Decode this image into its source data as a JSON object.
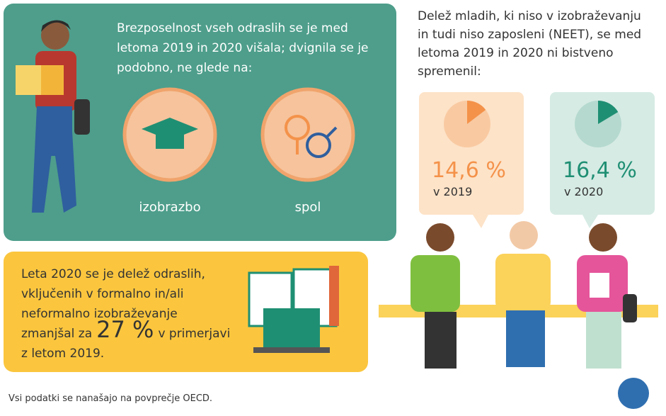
{
  "panel_unemployment": {
    "lines": [
      "Brezposelnost vseh odraslih se je med",
      "letoma 2019 in 2020 višala; dvignila se je",
      "podobno, ne glede na:"
    ],
    "items": [
      "izobrazbo",
      "spol"
    ]
  },
  "panel_education": {
    "lines": [
      "Leta 2020 se je delež odraslih,",
      "vključenih  v formalno in/ali",
      "neformalno izobraževanje"
    ],
    "before": "zmanjšal za",
    "highlight": "27 %",
    "after": "v primerjavi",
    "last": "z letom 2019."
  },
  "neet": {
    "lines": [
      "Delež mladih, ki niso v izobraževanju",
      "in tudi niso zaposleni (NEET), se med",
      "letoma 2019 in 2020 ni bistveno",
      "spremenil:"
    ],
    "cards": [
      {
        "value": 14.6,
        "label": "14,6 %",
        "year": "v 2019",
        "color": "#f4924a"
      },
      {
        "value": 16.4,
        "label": "16,4 %",
        "year": "v 2020",
        "color": "#1f8f73"
      }
    ]
  },
  "footnote": "Vsi podatki se nanašajo na povprečje OECD."
}
